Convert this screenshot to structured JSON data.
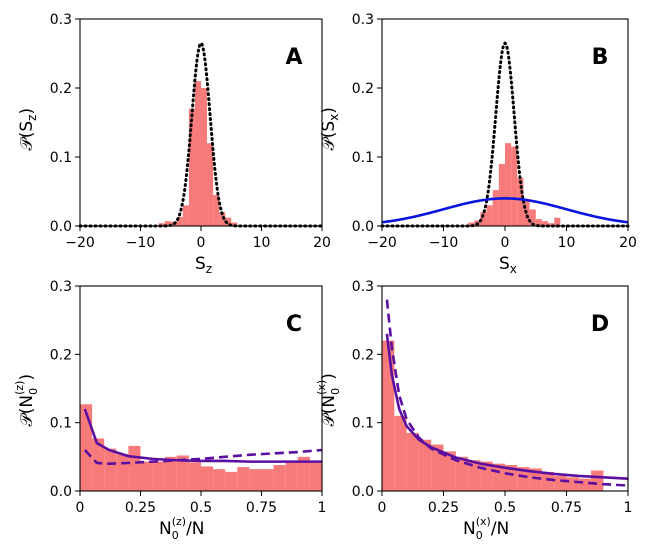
{
  "chart_data": [
    {
      "id": "A",
      "type": "bar",
      "letter": "A",
      "xlabel": "S",
      "xlabel_sub": "z",
      "ylabel_prefix": "𝒫(S",
      "ylabel_sub": "z",
      "ylabel_suffix": ")",
      "xlim": [
        -20,
        20
      ],
      "ylim": [
        0,
        0.3
      ],
      "xticks": [
        -20,
        -10,
        0,
        10,
        20
      ],
      "xtick_labels": [
        "−20",
        "−10",
        "0",
        "10",
        "20"
      ],
      "yticks": [
        0,
        0.1,
        0.2,
        0.3
      ],
      "ytick_labels": [
        "0.0",
        "0.1",
        "0.2",
        "0.3"
      ],
      "histogram": {
        "color": "#f77b7b",
        "bin_edges": [
          -7,
          -6,
          -5,
          -4,
          -3,
          -2,
          -1,
          0,
          1,
          2,
          3,
          4,
          5,
          6
        ],
        "values": [
          0.004,
          0.007,
          0.006,
          0.013,
          0.03,
          0.17,
          0.21,
          0.2,
          0.12,
          0.045,
          0.02,
          0.012,
          0.005
        ]
      },
      "curves": [
        {
          "name": "dotted gaussian",
          "style": "dotted",
          "color": "#000000",
          "function": "gaussian",
          "mu": 0,
          "sigma": 1.5,
          "amplitude": 0.265
        }
      ]
    },
    {
      "id": "B",
      "type": "bar",
      "letter": "B",
      "xlabel": "S",
      "xlabel_sub": "x",
      "ylabel_prefix": "𝒫(S",
      "ylabel_sub": "x",
      "ylabel_suffix": ")",
      "xlim": [
        -20,
        20
      ],
      "ylim": [
        0,
        0.3
      ],
      "xticks": [
        -20,
        -10,
        0,
        10,
        20
      ],
      "xtick_labels": [
        "−20",
        "−10",
        "0",
        "10",
        "20"
      ],
      "yticks": [
        0,
        0.1,
        0.2,
        0.3
      ],
      "ytick_labels": [
        "0.0",
        "0.1",
        "0.2",
        "0.3"
      ],
      "histogram": {
        "color": "#f77b7b",
        "bin_edges": [
          -6,
          -5,
          -4,
          -3,
          -2,
          -1,
          0,
          1,
          2,
          3,
          4,
          5,
          6,
          7,
          8,
          9
        ],
        "values": [
          0.005,
          0.008,
          0.02,
          0.03,
          0.052,
          0.09,
          0.12,
          0.115,
          0.07,
          0.038,
          0.024,
          0.01,
          0.007,
          0.004,
          0.012
        ]
      },
      "curves": [
        {
          "name": "dotted gaussian",
          "style": "dotted",
          "color": "#000000",
          "function": "gaussian",
          "mu": 0,
          "sigma": 1.5,
          "amplitude": 0.265
        },
        {
          "name": "broad gaussian",
          "style": "solid",
          "color": "#0a14e0",
          "function": "gaussian",
          "mu": 0,
          "sigma": 10,
          "amplitude": 0.04
        }
      ]
    },
    {
      "id": "C",
      "type": "bar",
      "letter": "C",
      "xlabel_main": "N",
      "xlabel_sub": "0",
      "xlabel_sup": "(z)",
      "xlabel_tail": "/N",
      "ylabel_prefix": "𝒫(N",
      "ylabel_sub": "0",
      "ylabel_sup": "(z)",
      "ylabel_suffix": ")",
      "xlim": [
        0,
        1
      ],
      "ylim": [
        0,
        0.3
      ],
      "xticks": [
        0,
        0.25,
        0.5,
        0.75,
        1
      ],
      "xtick_labels": [
        "0",
        "0.25",
        "0.5",
        "0.75",
        "1"
      ],
      "yticks": [
        0,
        0.1,
        0.2,
        0.3
      ],
      "ytick_labels": [
        "0.0",
        "0.1",
        "0.2",
        "0.3"
      ],
      "histogram": {
        "color": "#f77b7b",
        "bin_edges": [
          0,
          0.05,
          0.1,
          0.15,
          0.2,
          0.25,
          0.3,
          0.35,
          0.4,
          0.45,
          0.5,
          0.55,
          0.6,
          0.65,
          0.7,
          0.75,
          0.8,
          0.85,
          0.9,
          0.95,
          1.0
        ],
        "values": [
          0.127,
          0.077,
          0.062,
          0.054,
          0.066,
          0.043,
          0.043,
          0.05,
          0.052,
          0.042,
          0.036,
          0.032,
          0.028,
          0.035,
          0.032,
          0.032,
          0.038,
          0.043,
          0.05,
          0.043
        ]
      },
      "curves": [
        {
          "name": "solid fit",
          "style": "solid",
          "color": "#5b0fa0",
          "x": [
            0.02,
            0.07,
            0.12,
            0.2,
            0.3,
            0.4,
            0.5,
            0.6,
            0.7,
            0.8,
            0.9,
            1.0
          ],
          "y": [
            0.12,
            0.07,
            0.06,
            0.051,
            0.047,
            0.045,
            0.044,
            0.044,
            0.043,
            0.043,
            0.043,
            0.043
          ]
        },
        {
          "name": "dashed fit",
          "style": "dashed",
          "color": "#5b0fa0",
          "x": [
            0.02,
            0.07,
            0.12,
            0.2,
            0.3,
            0.4,
            0.5,
            0.6,
            0.7,
            0.8,
            0.9,
            1.0
          ],
          "y": [
            0.06,
            0.041,
            0.04,
            0.041,
            0.043,
            0.045,
            0.047,
            0.05,
            0.053,
            0.055,
            0.057,
            0.06
          ]
        }
      ]
    },
    {
      "id": "D",
      "type": "bar",
      "letter": "D",
      "xlabel_main": "N",
      "xlabel_sub": "0",
      "xlabel_sup": "(x)",
      "xlabel_tail": "/N",
      "ylabel_prefix": "𝒫(N",
      "ylabel_sub": "0",
      "ylabel_sup": "(x)",
      "ylabel_suffix": ")",
      "xlim": [
        0,
        1
      ],
      "ylim": [
        0,
        0.3
      ],
      "xticks": [
        0,
        0.25,
        0.5,
        0.75,
        1
      ],
      "xtick_labels": [
        "0",
        "0.25",
        "0.5",
        "0.75",
        "1"
      ],
      "yticks": [
        0,
        0.1,
        0.2,
        0.3
      ],
      "ytick_labels": [
        "0.0",
        "0.1",
        "0.2",
        "0.3"
      ],
      "histogram": {
        "color": "#f77b7b",
        "bin_edges": [
          0,
          0.05,
          0.1,
          0.15,
          0.2,
          0.25,
          0.3,
          0.35,
          0.4,
          0.45,
          0.5,
          0.55,
          0.6,
          0.65,
          0.7,
          0.75,
          0.8,
          0.85,
          0.9
        ],
        "values": [
          0.22,
          0.11,
          0.085,
          0.075,
          0.068,
          0.058,
          0.05,
          0.045,
          0.043,
          0.04,
          0.038,
          0.035,
          0.033,
          0.028,
          0.022,
          0.02,
          0.018,
          0.03
        ]
      },
      "curves": [
        {
          "name": "solid fit",
          "style": "solid",
          "color": "#5b0fa0",
          "x": [
            0.02,
            0.04,
            0.07,
            0.1,
            0.15,
            0.2,
            0.3,
            0.4,
            0.5,
            0.6,
            0.7,
            0.8,
            0.9,
            1.0
          ],
          "y": [
            0.23,
            0.17,
            0.12,
            0.095,
            0.075,
            0.064,
            0.049,
            0.04,
            0.034,
            0.029,
            0.025,
            0.022,
            0.02,
            0.018
          ]
        },
        {
          "name": "dashed fit",
          "style": "dashed",
          "color": "#5b0fa0",
          "x": [
            0.02,
            0.04,
            0.07,
            0.1,
            0.15,
            0.2,
            0.3,
            0.4,
            0.5,
            0.6,
            0.7,
            0.8,
            0.9,
            1.0
          ],
          "y": [
            0.28,
            0.21,
            0.14,
            0.105,
            0.078,
            0.062,
            0.045,
            0.034,
            0.026,
            0.02,
            0.016,
            0.013,
            0.01,
            0.008
          ]
        }
      ]
    }
  ]
}
